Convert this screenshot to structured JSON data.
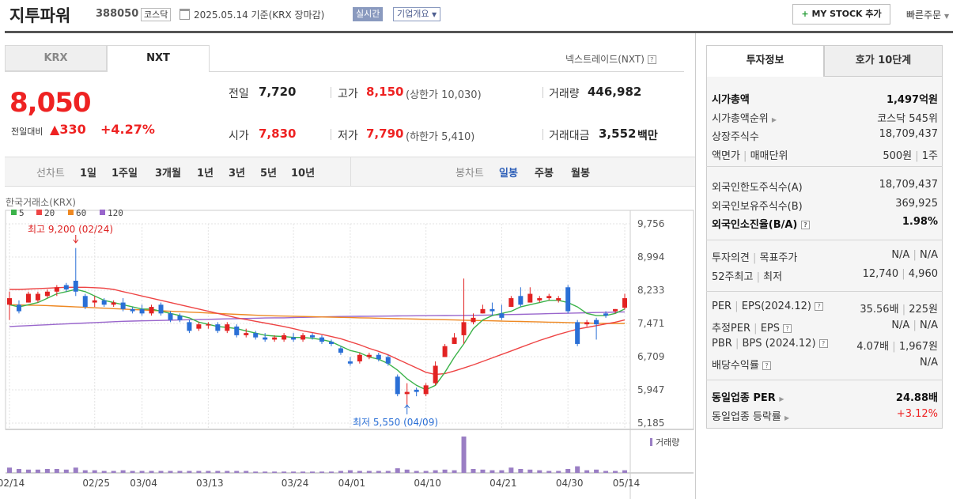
{
  "header": {
    "title": "지투파워",
    "code": "388050",
    "market": "코스닥",
    "date": "2025.05.14 기준(KRX 장마감)",
    "realtime": "실시간",
    "overview": "기업개요",
    "mystock_label": "MY STOCK 추가",
    "quick_order": "빠른주문"
  },
  "tabs": {
    "krx": "KRX",
    "nxt": "NXT",
    "nxt_link": "넥스트레이드(NXT)"
  },
  "price": {
    "current": "8,050",
    "change_label": "전일대비",
    "change": "330",
    "change_pct": "+4.27%",
    "prev_label": "전일",
    "prev": "7,720",
    "open_label": "시가",
    "open": "7,830",
    "high_label": "고가",
    "high": "8,150",
    "upper_limit": "(상한가 10,030)",
    "low_label": "저가",
    "low": "7,790",
    "lower_limit": "(하한가 5,410)",
    "volume_label": "거래량",
    "volume": "446,982",
    "amount_label": "거래대금",
    "amount": "3,552",
    "amount_unit": "백만"
  },
  "period": {
    "line_title": "선차트",
    "line_items": [
      "1일",
      "1주일",
      "3개월",
      "1년",
      "3년",
      "5년",
      "10년"
    ],
    "candle_title": "봉차트",
    "candle_items": [
      "일봉",
      "주봉",
      "월봉"
    ]
  },
  "colors": {
    "up": "#e22222",
    "down": "#2a6fd6",
    "ma5": "#3cb34a",
    "ma20": "#ee4444",
    "ma60": "#ee8822",
    "ma120": "#9966cc"
  },
  "chart_data": {
    "type": "candlestick",
    "source_label": "한국거래소(KRX)",
    "legend": [
      {
        "name": "5",
        "color": "#3cb34a"
      },
      {
        "name": "20",
        "color": "#ee4444"
      },
      {
        "name": "60",
        "color": "#ee8822"
      },
      {
        "name": "120",
        "color": "#9966cc"
      }
    ],
    "y_ticks": [
      "9,756",
      "8,994",
      "8,233",
      "7,471",
      "6,709",
      "5,947",
      "5,185"
    ],
    "ylim": [
      5185,
      9756
    ],
    "x_ticks": [
      "02/14",
      "02/25",
      "03/04",
      "03/13",
      "03/24",
      "04/01",
      "04/10",
      "04/21",
      "04/30",
      "05/14"
    ],
    "high_annotation": "최고 9,200 (02/24)",
    "low_annotation": "최저 5,550 (04/09)",
    "volume_label": "거래량",
    "candles": [
      [
        7900,
        8050,
        7550,
        8200
      ],
      [
        7900,
        7750,
        7700,
        8000
      ],
      [
        7950,
        8150,
        7950,
        8200
      ],
      [
        8000,
        8150,
        7950,
        8200
      ],
      [
        8100,
        8200,
        8050,
        8250
      ],
      [
        8200,
        8300,
        8100,
        8350
      ],
      [
        8350,
        8250,
        8200,
        8400
      ],
      [
        8450,
        8200,
        8100,
        9200
      ],
      [
        8100,
        7850,
        7800,
        8150
      ],
      [
        7950,
        8000,
        7850,
        8100
      ],
      [
        8000,
        7900,
        7850,
        8050
      ],
      [
        7900,
        7950,
        7850,
        8000
      ],
      [
        7950,
        7800,
        7750,
        8050
      ],
      [
        7800,
        7750,
        7700,
        7850
      ],
      [
        7800,
        7700,
        7650,
        7900
      ],
      [
        7700,
        7850,
        7650,
        7900
      ],
      [
        7900,
        7700,
        7650,
        7950
      ],
      [
        7700,
        7550,
        7500,
        7750
      ],
      [
        7650,
        7550,
        7500,
        7700
      ],
      [
        7500,
        7300,
        7250,
        7550
      ],
      [
        7350,
        7450,
        7300,
        7500
      ],
      [
        7450,
        7450,
        7350,
        7500
      ],
      [
        7450,
        7300,
        7250,
        7500
      ],
      [
        7300,
        7450,
        7250,
        7500
      ],
      [
        7400,
        7200,
        7150,
        7450
      ],
      [
        7200,
        7250,
        7150,
        7350
      ],
      [
        7250,
        7150,
        7100,
        7300
      ],
      [
        7150,
        7100,
        7050,
        7250
      ],
      [
        7100,
        7150,
        7050,
        7200
      ],
      [
        7100,
        7200,
        7050,
        7250
      ],
      [
        7150,
        7100,
        7050,
        7250
      ],
      [
        7100,
        7200,
        7050,
        7250
      ],
      [
        7200,
        7150,
        7100,
        7250
      ],
      [
        7150,
        7050,
        7000,
        7200
      ],
      [
        7050,
        7000,
        6950,
        7100
      ],
      [
        6900,
        6800,
        6750,
        6950
      ],
      [
        6600,
        6550,
        6500,
        6700
      ],
      [
        6600,
        6750,
        6550,
        6800
      ],
      [
        6700,
        6750,
        6650,
        6800
      ],
      [
        6750,
        6650,
        6600,
        6800
      ],
      [
        6700,
        6550,
        6500,
        6750
      ],
      [
        6250,
        5850,
        5800,
        6300
      ],
      [
        5850,
        5900,
        5550,
        6100
      ],
      [
        5950,
        5900,
        5800,
        6000
      ],
      [
        5850,
        6050,
        5800,
        6100
      ],
      [
        6100,
        6500,
        6050,
        6600
      ],
      [
        6700,
        6950,
        6700,
        7000
      ],
      [
        7000,
        7150,
        7000,
        7250
      ],
      [
        7200,
        7500,
        7000,
        8500
      ],
      [
        7500,
        7600,
        7450,
        7700
      ],
      [
        7700,
        7800,
        7700,
        7900
      ],
      [
        7800,
        7750,
        7650,
        7950
      ],
      [
        7700,
        7600,
        7550,
        7900
      ],
      [
        7850,
        8050,
        7850,
        8100
      ],
      [
        8100,
        7900,
        7850,
        8300
      ],
      [
        7950,
        8150,
        7950,
        8300
      ],
      [
        8000,
        8050,
        7950,
        8100
      ],
      [
        8050,
        8100,
        8000,
        8150
      ],
      [
        8000,
        8050,
        7950,
        8100
      ],
      [
        8300,
        7750,
        7700,
        8350
      ],
      [
        7500,
        7000,
        6950,
        7550
      ],
      [
        7450,
        7500,
        7400,
        7550
      ],
      [
        7550,
        7450,
        7100,
        7600
      ],
      [
        7700,
        7650,
        7600,
        7750
      ],
      [
        7750,
        7800,
        7700,
        7800
      ],
      [
        7830,
        8050,
        7790,
        8150
      ]
    ],
    "ma5": [
      7900,
      7850,
      7900,
      7950,
      8050,
      8150,
      8200,
      8250,
      8200,
      8100,
      8000,
      7950,
      7900,
      7850,
      7800,
      7800,
      7750,
      7700,
      7650,
      7600,
      7500,
      7450,
      7400,
      7380,
      7350,
      7300,
      7250,
      7200,
      7180,
      7170,
      7150,
      7150,
      7130,
      7100,
      7050,
      6950,
      6850,
      6800,
      6700,
      6650,
      6550,
      6400,
      6200,
      6050,
      5950,
      6050,
      6350,
      6700,
      7000,
      7350,
      7550,
      7650,
      7700,
      7750,
      7850,
      7900,
      7950,
      8000,
      8000,
      7950,
      7850,
      7700,
      7650,
      7650,
      7700,
      7800
    ],
    "ma20": [
      8250,
      8250,
      8260,
      8270,
      8280,
      8290,
      8300,
      8300,
      8300,
      8290,
      8280,
      8250,
      8200,
      8150,
      8100,
      8050,
      8000,
      7950,
      7900,
      7850,
      7800,
      7750,
      7700,
      7650,
      7600,
      7560,
      7520,
      7480,
      7440,
      7400,
      7350,
      7300,
      7260,
      7220,
      7170,
      7120,
      7050,
      6980,
      6900,
      6830,
      6750,
      6650,
      6550,
      6450,
      6350,
      6300,
      6320,
      6380,
      6450,
      6520,
      6600,
      6680,
      6760,
      6840,
      6920,
      7000,
      7080,
      7150,
      7220,
      7280,
      7340,
      7380,
      7420,
      7460,
      7500,
      7550
    ],
    "ma60": [
      7900,
      7895,
      7890,
      7885,
      7880,
      7870,
      7860,
      7850,
      7840,
      7830,
      7820,
      7810,
      7800,
      7790,
      7780,
      7770,
      7760,
      7750,
      7740,
      7730,
      7720,
      7710,
      7700,
      7690,
      7680,
      7670,
      7660,
      7650,
      7645,
      7640,
      7635,
      7630,
      7625,
      7620,
      7615,
      7610,
      7605,
      7600,
      7595,
      7590,
      7585,
      7580,
      7575,
      7570,
      7565,
      7560,
      7555,
      7550,
      7545,
      7540,
      7535,
      7530,
      7525,
      7520,
      7515,
      7510,
      7505,
      7500,
      7495,
      7490,
      7485,
      7480,
      7475,
      7470,
      7470,
      7470
    ],
    "ma120": [
      7400,
      7410,
      7420,
      7430,
      7440,
      7450,
      7460,
      7470,
      7480,
      7490,
      7500,
      7510,
      7520,
      7525,
      7530,
      7535,
      7540,
      7545,
      7550,
      7555,
      7560,
      7565,
      7570,
      7575,
      7580,
      7585,
      7590,
      7595,
      7600,
      7600,
      7605,
      7610,
      7615,
      7620,
      7625,
      7630,
      7632,
      7634,
      7636,
      7638,
      7640,
      7642,
      7644,
      7646,
      7648,
      7650,
      7652,
      7654,
      7656,
      7658,
      7660,
      7665,
      7670,
      7675,
      7680,
      7685,
      7690,
      7695,
      7700,
      7705,
      7710,
      7715,
      7720,
      7725,
      7730,
      7735
    ],
    "volumes": [
      8,
      6,
      5,
      5,
      6,
      6,
      5,
      8,
      4,
      4,
      3,
      3,
      4,
      3,
      3,
      3,
      3,
      3,
      3,
      3,
      3,
      3,
      3,
      3,
      3,
      3,
      2,
      2,
      2,
      2,
      2,
      2,
      2,
      2,
      2,
      3,
      4,
      3,
      3,
      3,
      3,
      7,
      5,
      3,
      3,
      4,
      5,
      4,
      55,
      6,
      5,
      4,
      4,
      8,
      6,
      5,
      4,
      3,
      3,
      6,
      10,
      4,
      5,
      3,
      3,
      4
    ]
  },
  "right_panel": {
    "tab_invest": "투자정보",
    "tab_quote": "호가 10단계",
    "sec1": [
      {
        "k": "시가총액",
        "v": "1,497억원",
        "bold": true
      },
      {
        "k": "시가총액순위",
        "v": "코스닥 545위",
        "arrow": true
      },
      {
        "k": "상장주식수",
        "v": "18,709,437"
      },
      {
        "k": "액면가",
        "k2": "매매단위",
        "v": "500원",
        "v2": "1주"
      }
    ],
    "sec2": [
      {
        "k": "외국인한도주식수(A)",
        "v": "18,709,437"
      },
      {
        "k": "외국인보유주식수(B)",
        "v": "369,925"
      },
      {
        "k": "외국인소진율(B/A)",
        "v": "1.98%",
        "bold": true,
        "q": true
      }
    ],
    "sec3": [
      {
        "k": "투자의견",
        "k2": "목표주가",
        "v": "N/A",
        "v2": "N/A"
      },
      {
        "k": "52주최고",
        "k2": "최저",
        "v": "12,740",
        "v2": "4,960"
      }
    ],
    "sec4": [
      {
        "k": "PER",
        "k2": "EPS(2024.12)",
        "v": "35.56배",
        "v2": "225원",
        "q": true
      },
      {
        "k": "추정PER",
        "k2": "EPS",
        "v": "N/A",
        "v2": "N/A",
        "q": true
      },
      {
        "k": "PBR",
        "k2": "BPS (2024.12)",
        "v": "4.07배",
        "v2": "1,967원",
        "q": true
      },
      {
        "k": "배당수익률",
        "v": "N/A",
        "q": true
      }
    ],
    "sec5": [
      {
        "k": "동일업종 PER",
        "v": "24.88배",
        "bold": true,
        "arrow": true
      },
      {
        "k": "동일업종 등락률",
        "v": "+3.12%",
        "red": true,
        "arrow": true
      }
    ]
  }
}
